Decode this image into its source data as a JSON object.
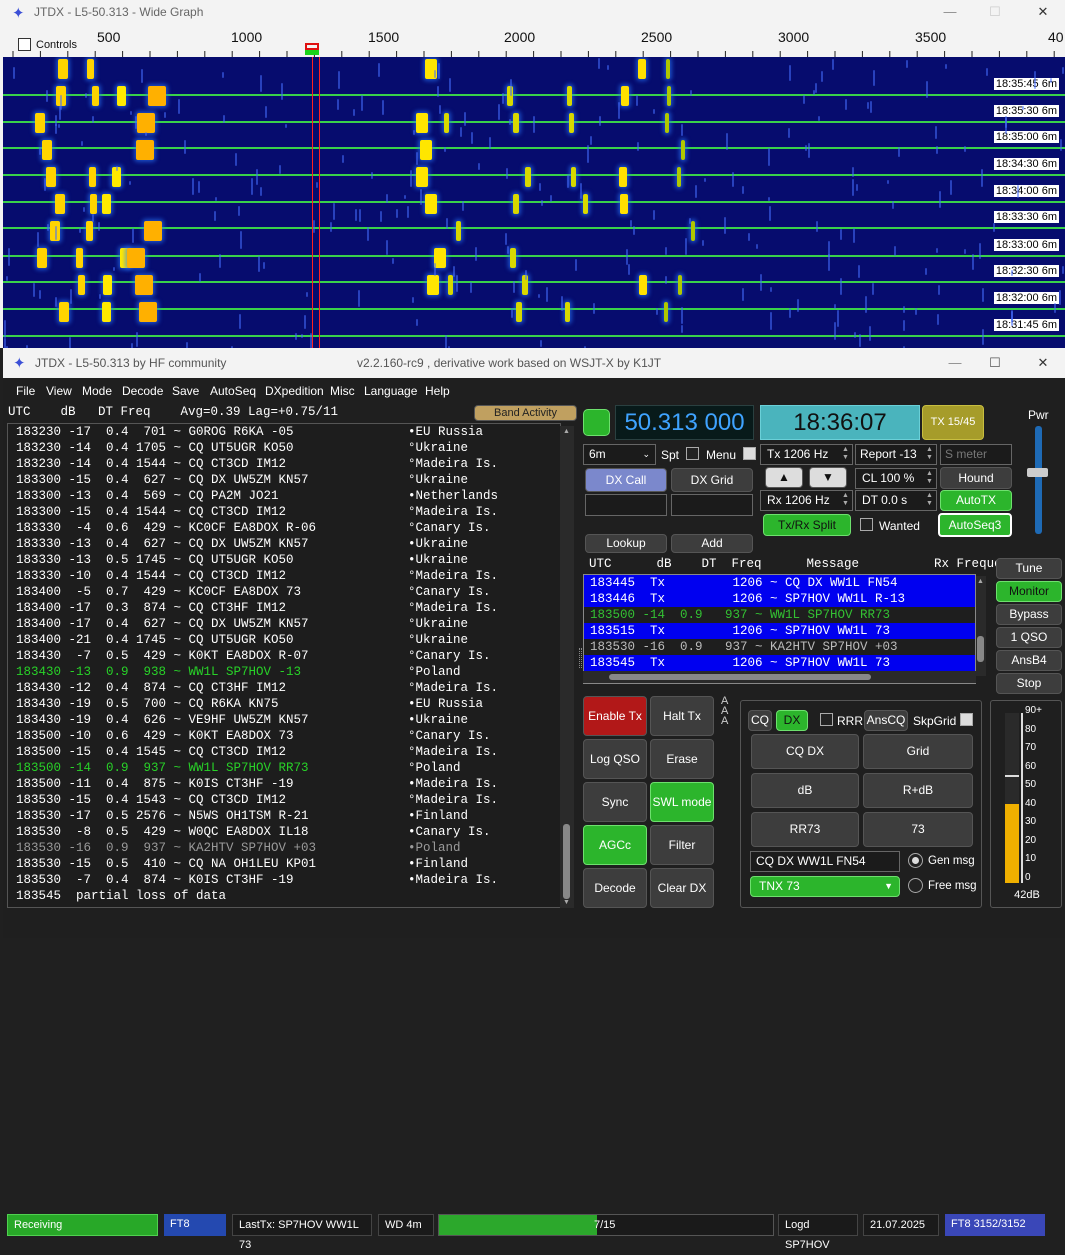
{
  "wide_graph": {
    "title": "JTDX - L5-50.313 - Wide Graph",
    "controls_label": "Controls",
    "ticks": [
      "500",
      "1000",
      "1500",
      "2000",
      "2500",
      "3000",
      "3500",
      "40"
    ],
    "timestamps": [
      {
        "time": "18:35:45",
        "band": "6m"
      },
      {
        "time": "18:35:30",
        "band": "6m"
      },
      {
        "time": "18:35:00",
        "band": "6m"
      },
      {
        "time": "18:34:30",
        "band": "6m"
      },
      {
        "time": "18:34:00",
        "band": "6m"
      },
      {
        "time": "18:33:30",
        "band": "6m"
      },
      {
        "time": "18:33:00",
        "band": "6m"
      },
      {
        "time": "18:32:30",
        "band": "6m"
      },
      {
        "time": "18:32:00",
        "band": "6m"
      },
      {
        "time": "18:31:45",
        "band": "6m"
      }
    ]
  },
  "main": {
    "title_left": "JTDX - L5-50.313  by HF community",
    "title_right": "v2.2.160-rc9 , derivative work based on WSJT-X by K1JT",
    "menu": [
      "File",
      "View",
      "Mode",
      "Decode",
      "Save",
      "AutoSeq",
      "DXpedition",
      "Misc",
      "Language",
      "Help"
    ],
    "left_header": "UTC    dB   DT Freq    Avg=0.39 Lag=+0.75/11",
    "band_activity": "Band Activity",
    "decodes": [
      {
        "t": "183230 -17  0.4  701 ~ G0ROG R6KA -05",
        "c": "•EU Russia",
        "k": ""
      },
      {
        "t": "183230 -14  0.4 1705 ~ CQ UT5UGR KO50",
        "c": "°Ukraine",
        "k": ""
      },
      {
        "t": "183230 -14  0.4 1544 ~ CQ CT3CD IM12",
        "c": "°Madeira Is.",
        "k": ""
      },
      {
        "t": "183300 -15  0.4  627 ~ CQ DX UW5ZM KN57",
        "c": "°Ukraine",
        "k": ""
      },
      {
        "t": "183300 -13  0.4  569 ~ CQ PA2M JO21",
        "c": "•Netherlands",
        "k": ""
      },
      {
        "t": "183300 -15  0.4 1544 ~ CQ CT3CD IM12",
        "c": "°Madeira Is.",
        "k": ""
      },
      {
        "t": "183330  -4  0.6  429 ~ KC0CF EA8DOX R-06",
        "c": "°Canary Is.",
        "k": ""
      },
      {
        "t": "183330 -13  0.4  627 ~ CQ DX UW5ZM KN57",
        "c": "•Ukraine",
        "k": ""
      },
      {
        "t": "183330 -13  0.5 1745 ~ CQ UT5UGR KO50",
        "c": "•Ukraine",
        "k": ""
      },
      {
        "t": "183330 -10  0.4 1544 ~ CQ CT3CD IM12",
        "c": "°Madeira Is.",
        "k": ""
      },
      {
        "t": "183400  -5  0.7  429 ~ KC0CF EA8DOX 73",
        "c": "°Canary Is.",
        "k": ""
      },
      {
        "t": "183400 -17  0.3  874 ~ CQ CT3HF IM12",
        "c": "°Madeira Is.",
        "k": ""
      },
      {
        "t": "183400 -17  0.4  627 ~ CQ DX UW5ZM KN57",
        "c": "°Ukraine",
        "k": ""
      },
      {
        "t": "183400 -21  0.4 1745 ~ CQ UT5UGR KO50",
        "c": "°Ukraine",
        "k": ""
      },
      {
        "t": "183430  -7  0.5  429 ~ K0KT EA8DOX R-07",
        "c": "°Canary Is.",
        "k": ""
      },
      {
        "t": "183430 -13  0.9  938 ~ WW1L SP7HOV -13",
        "c": "°Poland",
        "k": "green"
      },
      {
        "t": "183430 -12  0.4  874 ~ CQ CT3HF IM12",
        "c": "°Madeira Is.",
        "k": ""
      },
      {
        "t": "183430 -19  0.5  700 ~ CQ R6KA KN75",
        "c": "•EU Russia",
        "k": ""
      },
      {
        "t": "183430 -19  0.4  626 ~ VE9HF UW5ZM KN57",
        "c": "•Ukraine",
        "k": ""
      },
      {
        "t": "183500 -10  0.6  429 ~ K0KT EA8DOX 73",
        "c": "°Canary Is.",
        "k": ""
      },
      {
        "t": "183500 -15  0.4 1545 ~ CQ CT3CD IM12",
        "c": "°Madeira Is.",
        "k": ""
      },
      {
        "t": "183500 -14  0.9  937 ~ WW1L SP7HOV RR73",
        "c": "°Poland",
        "k": "green"
      },
      {
        "t": "183500 -11  0.4  875 ~ K0IS CT3HF -19",
        "c": "•Madeira Is.",
        "k": ""
      },
      {
        "t": "183530 -15  0.4 1543 ~ CQ CT3CD IM12",
        "c": "°Madeira Is.",
        "k": ""
      },
      {
        "t": "183530 -17  0.5 2576 ~ N5WS OH1TSM R-21",
        "c": "•Finland",
        "k": ""
      },
      {
        "t": "183530  -8  0.5  429 ~ W0QC EA8DOX IL18",
        "c": "•Canary Is.",
        "k": ""
      },
      {
        "t": "183530 -16  0.9  937 ~ KA2HTV SP7HOV +03",
        "c": "•Poland",
        "k": "dim"
      },
      {
        "t": "183530 -15  0.5  410 ~ CQ NA OH1LEU KP01",
        "c": "•Finland",
        "k": ""
      },
      {
        "t": "183530  -7  0.4  874 ~ K0IS CT3HF -19",
        "c": "•Madeira Is.",
        "k": ""
      },
      {
        "t": "183545  partial loss of data",
        "c": "",
        "k": ""
      }
    ],
    "frequency": "50.313 000",
    "clock": "18:36:07",
    "tx_period": "TX 15/45",
    "pwr_label": "Pwr",
    "band_select": "6m",
    "spt_label": "Spt",
    "menu_label": "Menu",
    "tx_hz": "Tx  1206  Hz",
    "rx_hz": "Rx  1206  Hz",
    "report": "Report -13",
    "s_meter_placeholder": "S meter",
    "cl_label": "CL  100 %",
    "dt_label": "DT 0.0 s",
    "hound": "Hound",
    "autotx": "AutoTX",
    "autoseq": "AutoSeq3",
    "dx_call_btn": "DX Call",
    "dx_grid_btn": "DX Grid",
    "lookup": "Lookup",
    "add": "Add",
    "txrx_split": "Tx/Rx Split",
    "wanted": "Wanted",
    "rx_header": "UTC      dB    DT  Freq      Message          Rx Frequency",
    "rx_rows": [
      {
        "t": "183445  Tx         1206 ~ CQ DX WW1L FN54",
        "k": "tx"
      },
      {
        "t": "183446  Tx         1206 ~ SP7HOV WW1L R-13",
        "k": "tx"
      },
      {
        "t": "183500 -14  0.9   937 ~ WW1L SP7HOV RR73",
        "k": "rx"
      },
      {
        "t": "183515  Tx         1206 ~ SP7HOV WW1L 73",
        "k": "tx"
      },
      {
        "t": "183530 -16  0.9   937 ~ KA2HTV SP7HOV +03",
        "k": "dimr"
      },
      {
        "t": "183545  Tx         1206 ~ SP7HOV WW1L 73",
        "k": "tx"
      }
    ],
    "side_buttons": [
      "Tune",
      "Monitor",
      "Bypass",
      "1 QSO",
      "AnsB4",
      "Stop"
    ],
    "action_buttons": [
      "Enable Tx",
      "Halt Tx",
      "Log QSO",
      "Erase",
      "Sync",
      "SWL mode",
      "AGCc",
      "Filter",
      "Decode",
      "Clear DX"
    ],
    "cq_label": "CQ",
    "dx_label": "DX",
    "rrr_label": "RRR",
    "anscq_label": "AnsCQ",
    "skpgrid_label": "SkpGrid",
    "msg_buttons": [
      "CQ DX",
      "Grid",
      "dB",
      "R+dB",
      "RR73",
      "73"
    ],
    "gen_msg_field": "CQ DX WW1L FN54",
    "gen_msg_label": "Gen msg",
    "free_msg_select": "TNX 73",
    "free_msg_label": "Free msg",
    "meter_scale": [
      "90+",
      "80",
      "70",
      "60",
      "50",
      "40",
      "30",
      "20",
      "10",
      "0"
    ],
    "meter_value_label": "42dB",
    "meter_level": 42,
    "status": {
      "receiving": "Receiving",
      "mode": "FT8",
      "last_tx": "LastTx: SP7HOV WW1L 73",
      "wd": "WD 4m",
      "progress_text": "7/15",
      "progress": 0.47,
      "logged": "Logd SP7HOV",
      "date": "21.07.2025",
      "count": "FT8  3152/3152"
    }
  }
}
